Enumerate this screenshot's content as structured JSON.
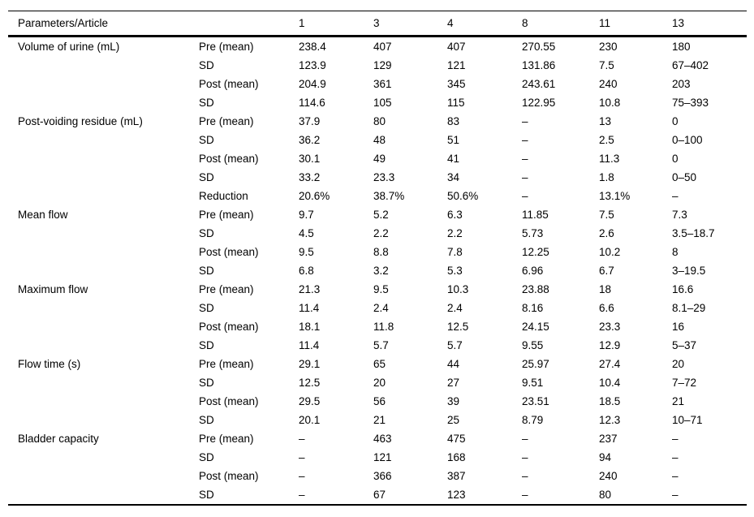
{
  "colors": {
    "background": "#ffffff",
    "text": "#000000",
    "rule": "#000000"
  },
  "table": {
    "header": {
      "param_label": "Parameters/Article",
      "sub_label": "",
      "columns": [
        "1",
        "3",
        "4",
        "8",
        "11",
        "13"
      ]
    },
    "groups": [
      {
        "parameter": "Volume of urine (mL)",
        "rows": [
          {
            "label": "Pre (mean)",
            "values": [
              "238.4",
              "407",
              "407",
              "270.55",
              "230",
              "180"
            ]
          },
          {
            "label": "SD",
            "values": [
              "123.9",
              "129",
              "121",
              "131.86",
              "7.5",
              "67–402"
            ]
          },
          {
            "label": "Post (mean)",
            "values": [
              "204.9",
              "361",
              "345",
              "243.61",
              "240",
              "203"
            ]
          },
          {
            "label": "SD",
            "values": [
              "114.6",
              "105",
              "115",
              "122.95",
              "10.8",
              "75–393"
            ]
          }
        ]
      },
      {
        "parameter": "Post-voiding residue (mL)",
        "rows": [
          {
            "label": "Pre (mean)",
            "values": [
              "37.9",
              "80",
              "83",
              "–",
              "13",
              "0"
            ]
          },
          {
            "label": "SD",
            "values": [
              "36.2",
              "48",
              "51",
              "–",
              "2.5",
              "0–100"
            ]
          },
          {
            "label": "Post (mean)",
            "values": [
              "30.1",
              "49",
              "41",
              "–",
              "11.3",
              "0"
            ]
          },
          {
            "label": "SD",
            "values": [
              "33.2",
              "23.3",
              "34",
              "–",
              "1.8",
              "0–50"
            ]
          },
          {
            "label": "Reduction",
            "values": [
              "20.6%",
              "38.7%",
              "50.6%",
              "–",
              "13.1%",
              "–"
            ]
          }
        ]
      },
      {
        "parameter": "Mean flow",
        "rows": [
          {
            "label": "Pre (mean)",
            "values": [
              "9.7",
              "5.2",
              "6.3",
              "11.85",
              "7.5",
              "7.3"
            ]
          },
          {
            "label": "SD",
            "values": [
              "4.5",
              "2.2",
              "2.2",
              "5.73",
              "2.6",
              "3.5–18.7"
            ]
          },
          {
            "label": "Post (mean)",
            "values": [
              "9.5",
              "8.8",
              "7.8",
              "12.25",
              "10.2",
              "8"
            ]
          },
          {
            "label": "SD",
            "values": [
              "6.8",
              "3.2",
              "5.3",
              "6.96",
              "6.7",
              "3–19.5"
            ]
          }
        ]
      },
      {
        "parameter": "Maximum flow",
        "rows": [
          {
            "label": "Pre (mean)",
            "values": [
              "21.3",
              "9.5",
              "10.3",
              "23.88",
              "18",
              "16.6"
            ]
          },
          {
            "label": "SD",
            "values": [
              "11.4",
              "2.4",
              "2.4",
              "8.16",
              "6.6",
              "8.1–29"
            ]
          },
          {
            "label": "Post (mean)",
            "values": [
              "18.1",
              "11.8",
              "12.5",
              "24.15",
              "23.3",
              "16"
            ]
          },
          {
            "label": "SD",
            "values": [
              "11.4",
              "5.7",
              "5.7",
              "9.55",
              "12.9",
              "5–37"
            ]
          }
        ]
      },
      {
        "parameter": "Flow time (s)",
        "rows": [
          {
            "label": "Pre (mean)",
            "values": [
              "29.1",
              "65",
              "44",
              "25.97",
              "27.4",
              "20"
            ]
          },
          {
            "label": "SD",
            "values": [
              "12.5",
              "20",
              "27",
              "9.51",
              "10.4",
              "7–72"
            ]
          },
          {
            "label": "Post (mean)",
            "values": [
              "29.5",
              "56",
              "39",
              "23.51",
              "18.5",
              "21"
            ]
          },
          {
            "label": "SD",
            "values": [
              "20.1",
              "21",
              "25",
              "8.79",
              "12.3",
              "10–71"
            ]
          }
        ]
      },
      {
        "parameter": "Bladder capacity",
        "rows": [
          {
            "label": "Pre (mean)",
            "values": [
              "–",
              "463",
              "475",
              "–",
              "237",
              "–"
            ]
          },
          {
            "label": "SD",
            "values": [
              "–",
              "121",
              "168",
              "–",
              "94",
              "–"
            ]
          },
          {
            "label": "Post (mean)",
            "values": [
              "–",
              "366",
              "387",
              "–",
              "240",
              "–"
            ]
          },
          {
            "label": "SD",
            "values": [
              "–",
              "67",
              "123",
              "–",
              "80",
              "–"
            ]
          }
        ]
      }
    ]
  }
}
